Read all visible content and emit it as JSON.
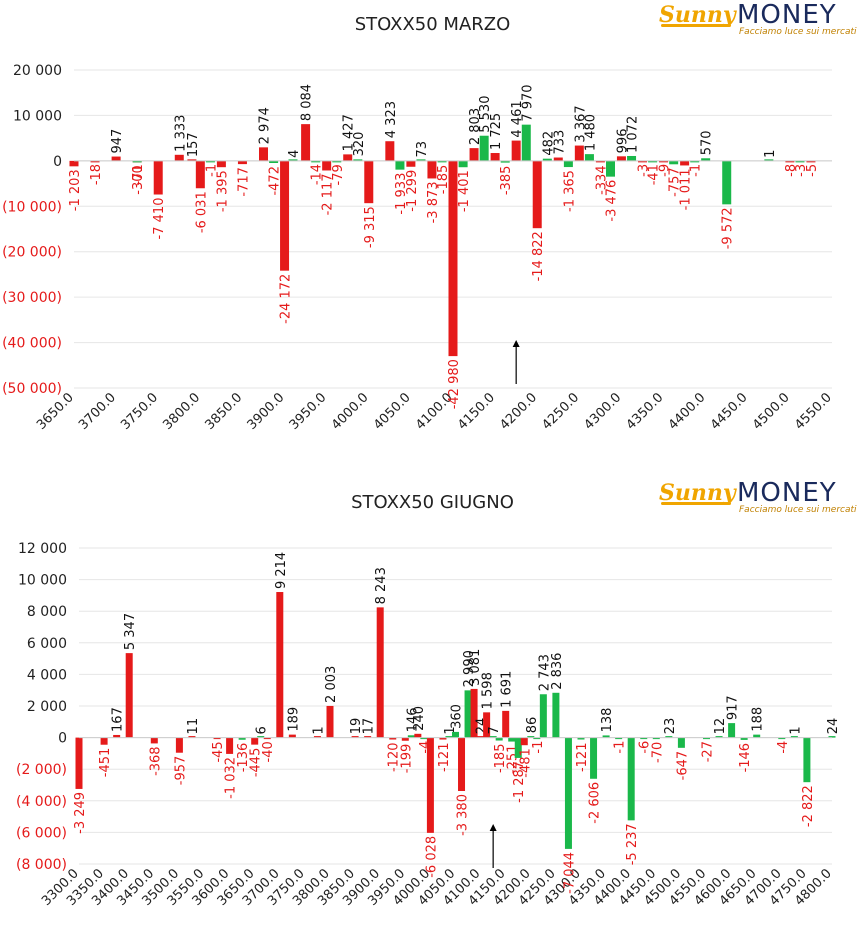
{
  "chart_data": [
    {
      "type": "bar",
      "title": "STOXX50 MARZO",
      "logo": {
        "brand": "Sunny",
        "brand2": "MONEY",
        "tagline": "Facciamo luce sui mercati"
      },
      "y_ticks": [
        "20 000",
        "10 000",
        "0",
        "(10 000)",
        "(20 000)",
        "(30 000)",
        "(40 000)",
        "(50 000)"
      ],
      "ylim": [
        -50000,
        20000
      ],
      "x_ticks": [
        "3650.0",
        "3700.0",
        "3750.0",
        "3800.0",
        "3850.0",
        "3900.0",
        "3950.0",
        "4000.0",
        "4050.0",
        "4100.0",
        "4150.0",
        "4200.0",
        "4250.0",
        "4300.0",
        "4350.0",
        "4400.0",
        "4450.0",
        "4500.0",
        "4550.0"
      ],
      "xlim": [
        3650,
        4550
      ],
      "current_price": 4175,
      "colors": {
        "negative": "#e51a1a",
        "positive": "#1ab84a",
        "positive_label": "#111111",
        "negative_label": "#e51a1a"
      },
      "series": [
        {
          "x": 3650,
          "red": -1203
        },
        {
          "x": 3675,
          "red": -18
        },
        {
          "x": 3700,
          "red": 947
        },
        {
          "x": 3725,
          "red": -71,
          "green": -300
        },
        {
          "x": 3750,
          "red": -7410
        },
        {
          "x": 3775,
          "red": 1333
        },
        {
          "x": 3790,
          "red": 157
        },
        {
          "x": 3800,
          "red": -6031
        },
        {
          "x": 3812,
          "green": -1
        },
        {
          "x": 3825,
          "red": -1395
        },
        {
          "x": 3850,
          "red": -717
        },
        {
          "x": 3875,
          "red": 2974
        },
        {
          "x": 3887,
          "green": -472
        },
        {
          "x": 3900,
          "red": -24172
        },
        {
          "x": 3910,
          "green": 4
        },
        {
          "x": 3925,
          "red": 8084
        },
        {
          "x": 3937,
          "green": -14
        },
        {
          "x": 3950,
          "red": -2117
        },
        {
          "x": 3962,
          "green": -79
        },
        {
          "x": 3975,
          "red": 1427
        },
        {
          "x": 3987,
          "green": 320
        },
        {
          "x": 4000,
          "red": -9315
        },
        {
          "x": 4025,
          "red": 4323
        },
        {
          "x": 4037,
          "green": -1933
        },
        {
          "x": 4050,
          "red": -1299
        },
        {
          "x": 4062,
          "green": 73
        },
        {
          "x": 4075,
          "red": -3873
        },
        {
          "x": 4087,
          "green": -185
        },
        {
          "x": 4100,
          "red": -42980
        },
        {
          "x": 4112,
          "green": -1401
        },
        {
          "x": 4125,
          "red": 2803
        },
        {
          "x": 4137,
          "green": 5530
        },
        {
          "x": 4150,
          "red": 1725
        },
        {
          "x": 4162,
          "green": -385
        },
        {
          "x": 4175,
          "red": 4461
        },
        {
          "x": 4187,
          "green": 7970
        },
        {
          "x": 4200,
          "red": -14822
        },
        {
          "x": 4212,
          "green": 482
        },
        {
          "x": 4225,
          "red": 733
        },
        {
          "x": 4237,
          "green": -1365
        },
        {
          "x": 4250,
          "red": 3367
        },
        {
          "x": 4262,
          "green": 1480
        },
        {
          "x": 4275,
          "red": -334
        },
        {
          "x": 4287,
          "green": -3476
        },
        {
          "x": 4300,
          "red": 996
        },
        {
          "x": 4312,
          "green": 1072
        },
        {
          "x": 4325,
          "red": -3
        },
        {
          "x": 4337,
          "green": -41
        },
        {
          "x": 4350,
          "red": -9
        },
        {
          "x": 4362,
          "green": -757
        },
        {
          "x": 4375,
          "red": -1011
        },
        {
          "x": 4387,
          "green": -1
        },
        {
          "x": 4400,
          "green": 570
        },
        {
          "x": 4425,
          "green": -9572
        },
        {
          "x": 4475,
          "green": 1
        },
        {
          "x": 4500,
          "red": -8
        },
        {
          "x": 4512,
          "green": -3
        },
        {
          "x": 4525,
          "red": -5
        }
      ]
    },
    {
      "type": "bar",
      "title": "STOXX50 GIUGNO",
      "logo": {
        "brand": "Sunny",
        "brand2": "MONEY",
        "tagline": "Facciamo luce sui mercati"
      },
      "y_ticks": [
        "12 000",
        "10 000",
        "8 000",
        "6 000",
        "4 000",
        "2 000",
        "0",
        "(2 000)",
        "(4 000)",
        "(6 000)",
        "(8 000)"
      ],
      "ylim": [
        -8000,
        12000
      ],
      "x_ticks": [
        "3300.0",
        "3350.0",
        "3400.0",
        "3450.0",
        "3500.0",
        "3550.0",
        "3600.0",
        "3650.0",
        "3700.0",
        "3750.0",
        "3800.0",
        "3850.0",
        "3900.0",
        "3950.0",
        "4000.0",
        "4050.0",
        "4100.0",
        "4150.0",
        "4200.0",
        "4250.0",
        "4300.0",
        "4350.0",
        "4400.0",
        "4450.0",
        "4500.0",
        "4550.0",
        "4600.0",
        "4650.0",
        "4700.0",
        "4750.0",
        "4800.0"
      ],
      "xlim": [
        3300,
        4800
      ],
      "current_price": 4125,
      "colors": {
        "negative": "#e51a1a",
        "positive": "#1ab84a",
        "positive_label": "#111111",
        "negative_label": "#e51a1a"
      },
      "series": [
        {
          "x": 3300,
          "red": -3249
        },
        {
          "x": 3350,
          "red": -451
        },
        {
          "x": 3375,
          "red": 167
        },
        {
          "x": 3400,
          "red": 5347
        },
        {
          "x": 3450,
          "red": -368
        },
        {
          "x": 3500,
          "red": -957
        },
        {
          "x": 3525,
          "red": 11
        },
        {
          "x": 3575,
          "red": -45
        },
        {
          "x": 3600,
          "red": -1032
        },
        {
          "x": 3625,
          "green": -136
        },
        {
          "x": 3650,
          "red": -445
        },
        {
          "x": 3662,
          "green": 6
        },
        {
          "x": 3675,
          "red": -40
        },
        {
          "x": 3700,
          "red": 9214
        },
        {
          "x": 3725,
          "red": 189
        },
        {
          "x": 3775,
          "red": 1
        },
        {
          "x": 3800,
          "red": 2003
        },
        {
          "x": 3850,
          "red": 19
        },
        {
          "x": 3875,
          "red": 17
        },
        {
          "x": 3900,
          "red": 8243
        },
        {
          "x": 3925,
          "red": -120
        },
        {
          "x": 3950,
          "red": -199
        },
        {
          "x": 3962,
          "green": 146
        },
        {
          "x": 3975,
          "red": 240
        },
        {
          "x": 3987,
          "green": -4
        },
        {
          "x": 4000,
          "red": -6028
        },
        {
          "x": 4025,
          "red": -121
        },
        {
          "x": 4037,
          "green": 1
        },
        {
          "x": 4050,
          "green": 360
        },
        {
          "x": 4062,
          "red": -3380
        },
        {
          "x": 4075,
          "green": 2990
        },
        {
          "x": 4087,
          "red": 3081
        },
        {
          "x": 4100,
          "red": 24
        },
        {
          "x": 4112,
          "red": 1598
        },
        {
          "x": 4125,
          "green": 7
        },
        {
          "x": 4137,
          "green": -185
        },
        {
          "x": 4150,
          "red": 1691
        },
        {
          "x": 4162,
          "green": -251
        },
        {
          "x": 4175,
          "green": -1287
        },
        {
          "x": 4187,
          "red": -481
        },
        {
          "x": 4200,
          "green": 86
        },
        {
          "x": 4212,
          "green": -1
        },
        {
          "x": 4225,
          "green": 2743
        },
        {
          "x": 4250,
          "green": 2836
        },
        {
          "x": 4275,
          "green": -7044
        },
        {
          "x": 4300,
          "green": -121
        },
        {
          "x": 4325,
          "green": -2606
        },
        {
          "x": 4350,
          "green": 138
        },
        {
          "x": 4375,
          "green": -1
        },
        {
          "x": 4400,
          "green": -5237
        },
        {
          "x": 4425,
          "green": -6
        },
        {
          "x": 4450,
          "green": -70
        },
        {
          "x": 4475,
          "green": 23
        },
        {
          "x": 4500,
          "green": -647
        },
        {
          "x": 4550,
          "green": -27
        },
        {
          "x": 4575,
          "green": 12
        },
        {
          "x": 4600,
          "green": 917
        },
        {
          "x": 4625,
          "green": -146
        },
        {
          "x": 4650,
          "green": 188
        },
        {
          "x": 4700,
          "green": -4
        },
        {
          "x": 4725,
          "green": 1
        },
        {
          "x": 4750,
          "green": -2822
        },
        {
          "x": 4800,
          "green": 24
        }
      ]
    }
  ]
}
